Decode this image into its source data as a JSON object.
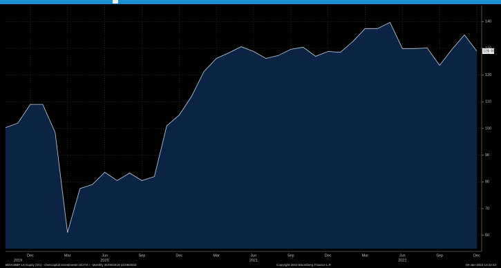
{
  "chart_data": {
    "type": "area",
    "categories": [
      null,
      null,
      "Dec",
      null,
      null,
      "Mar",
      null,
      null,
      "Jun",
      null,
      null,
      "Sep",
      null,
      null,
      "Dec",
      null,
      null,
      "Mar",
      null,
      null,
      "Jun",
      null,
      null,
      "Sep",
      null,
      null,
      "Dec",
      null,
      null,
      "Mar",
      null,
      null,
      "Jun",
      null,
      null,
      "Sep",
      null,
      null,
      "Dec"
    ],
    "year_labels": [
      null,
      "2019",
      null,
      null,
      null,
      null,
      null,
      null,
      "2020",
      null,
      null,
      null,
      null,
      null,
      null,
      null,
      null,
      null,
      null,
      null,
      "2021",
      null,
      null,
      null,
      null,
      null,
      null,
      null,
      null,
      null,
      null,
      null,
      "2022",
      null,
      null,
      null,
      null,
      null,
      null
    ],
    "series": [
      {
        "color": "#0b2445",
        "line_color": "#c9d3e0",
        "values": [
          100.3,
          102,
          109,
          109,
          98.5,
          61,
          77.5,
          79,
          83.6,
          80.5,
          83.3,
          80.5,
          82,
          101,
          105,
          112,
          121.3,
          126.2,
          128.3,
          130.6,
          128.8,
          126.2,
          127.3,
          129.6,
          130.4,
          127,
          128.8,
          128.5,
          132.5,
          137.4,
          137.4,
          139.7,
          129.9,
          129.9,
          130.1,
          123.6,
          129.6,
          135,
          128.93
        ]
      }
    ],
    "last_value_label": "128.93",
    "ylim": [
      55,
      146
    ],
    "yticks": [
      60,
      70,
      80,
      90,
      100,
      110,
      120,
      130,
      140
    ],
    "grid": true,
    "footer": [
      "BDVUBBF LX Equity (SC) - Overcapital Investments UCITS I - Monthly 31/08/2019-31/08/2022",
      "Copyright 2023 Bloomberg Finance L.P.",
      "09-Jan-2023 13:22:43"
    ]
  }
}
